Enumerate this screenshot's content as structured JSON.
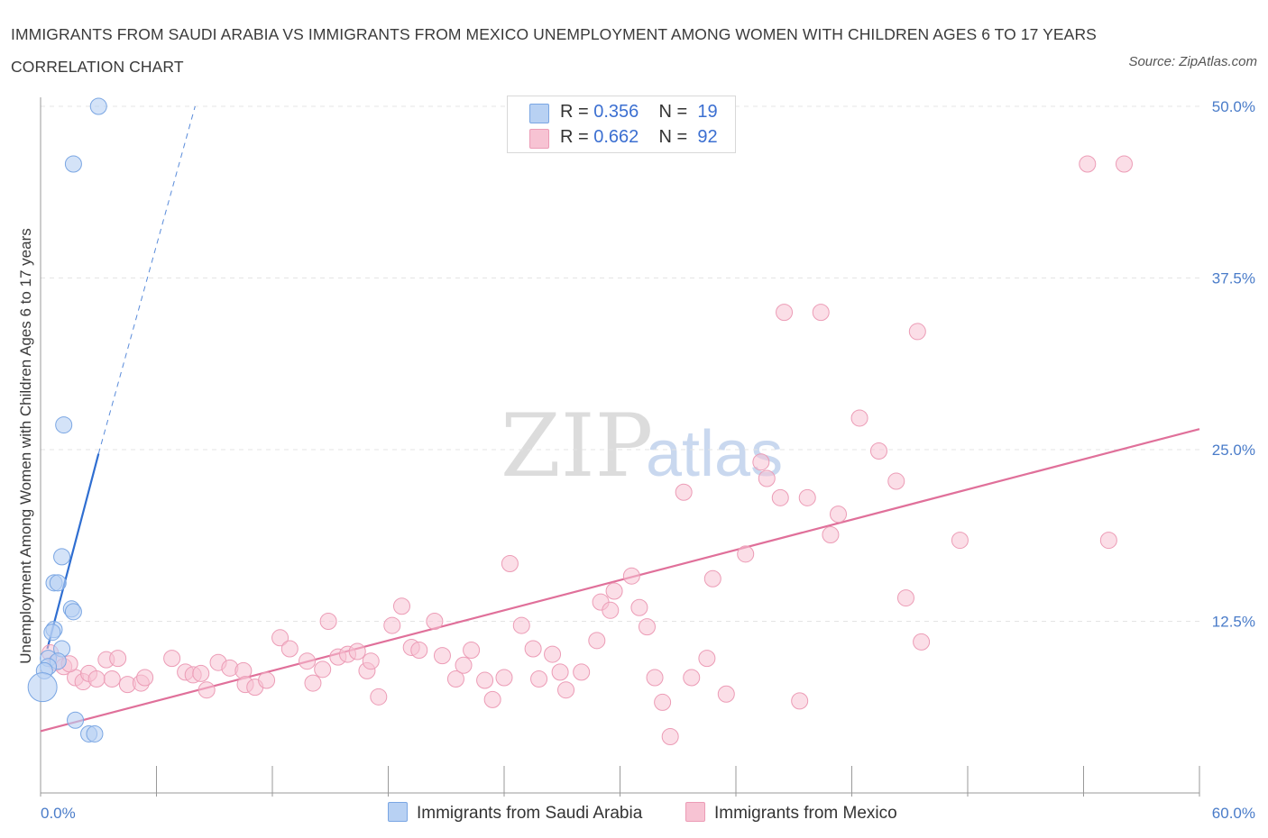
{
  "title": "IMMIGRANTS FROM SAUDI ARABIA VS IMMIGRANTS FROM MEXICO UNEMPLOYMENT AMONG WOMEN WITH CHILDREN AGES 6 TO 17 YEARS CORRELATION CHART",
  "source": "Source: ZipAtlas.com",
  "watermark": {
    "zip": "ZIP",
    "atlas": "atlas"
  },
  "legend": {
    "r_label": "R = ",
    "n_label": "N = ",
    "saudi": {
      "r": "0.356",
      "n": "19"
    },
    "mexico": {
      "r": "0.662",
      "n": "92"
    }
  },
  "colors": {
    "saudi_fill": "#b8d1f3",
    "saudi_stroke": "#7aa6e3",
    "saudi_line": "#2f6ed1",
    "mexico_fill": "#f7c3d3",
    "mexico_stroke": "#ec9cb6",
    "mexico_line": "#e0709a"
  },
  "chart_data": {
    "type": "scatter",
    "title": "IMMIGRANTS FROM SAUDI ARABIA VS IMMIGRANTS FROM MEXICO UNEMPLOYMENT AMONG WOMEN WITH CHILDREN AGES 6 TO 17 YEARS CORRELATION CHART",
    "xlabel": "",
    "ylabel": "Unemployment Among Women with Children Ages 6 to 17 years",
    "xlim": [
      0,
      60
    ],
    "ylim": [
      0,
      50
    ],
    "x_tick_labels": [
      "0.0%",
      "60.0%"
    ],
    "y_ticks": [
      12.5,
      25.0,
      37.5,
      50.0
    ],
    "y_tick_labels": [
      "12.5%",
      "25.0%",
      "37.5%",
      "50.0%"
    ],
    "grid": true,
    "legend_position": "top-center",
    "series": [
      {
        "name": "Immigrants from Saudi Arabia",
        "R": 0.356,
        "N": 19,
        "points": [
          [
            3.0,
            50.0
          ],
          [
            1.7,
            45.8
          ],
          [
            1.2,
            26.8
          ],
          [
            1.1,
            17.2
          ],
          [
            0.7,
            15.3
          ],
          [
            0.9,
            15.3
          ],
          [
            1.6,
            13.4
          ],
          [
            1.7,
            13.2
          ],
          [
            0.7,
            11.9
          ],
          [
            0.6,
            11.7
          ],
          [
            1.1,
            10.5
          ],
          [
            0.4,
            9.8
          ],
          [
            0.9,
            9.6
          ],
          [
            0.4,
            9.2
          ],
          [
            0.2,
            8.9
          ],
          [
            0.1,
            7.7
          ],
          [
            1.8,
            5.3
          ],
          [
            2.5,
            4.3
          ],
          [
            2.8,
            4.3
          ]
        ],
        "point_sizes": [
          9,
          9,
          9,
          9,
          9,
          9,
          9,
          9,
          9,
          9,
          9,
          9,
          9,
          9,
          9,
          16,
          9,
          9,
          9
        ],
        "trend": {
          "x_solid": [
            0.35,
            3.0
          ],
          "y_solid": [
            10.5,
            24.7
          ],
          "x_dashed": [
            3.0,
            8.0
          ],
          "y_dashed": [
            24.7,
            50.0
          ]
        }
      },
      {
        "name": "Immigrants from Mexico",
        "R": 0.662,
        "N": 92,
        "points": [
          [
            0.5,
            10.2
          ],
          [
            0.8,
            9.5
          ],
          [
            1.2,
            9.2
          ],
          [
            1.8,
            8.4
          ],
          [
            2.2,
            8.1
          ],
          [
            2.5,
            8.7
          ],
          [
            3.4,
            9.7
          ],
          [
            3.7,
            8.3
          ],
          [
            4.0,
            9.8
          ],
          [
            4.5,
            7.9
          ],
          [
            5.2,
            8.0
          ],
          [
            5.4,
            8.4
          ],
          [
            6.8,
            9.8
          ],
          [
            7.5,
            8.8
          ],
          [
            7.9,
            8.6
          ],
          [
            8.3,
            8.7
          ],
          [
            8.6,
            7.5
          ],
          [
            9.2,
            9.5
          ],
          [
            9.8,
            9.1
          ],
          [
            10.5,
            8.9
          ],
          [
            10.6,
            7.9
          ],
          [
            11.1,
            7.7
          ],
          [
            11.7,
            8.2
          ],
          [
            12.4,
            11.3
          ],
          [
            12.9,
            10.5
          ],
          [
            13.8,
            9.6
          ],
          [
            14.1,
            8.0
          ],
          [
            14.6,
            9.0
          ],
          [
            14.9,
            12.5
          ],
          [
            15.4,
            9.9
          ],
          [
            15.9,
            10.1
          ],
          [
            16.4,
            10.3
          ],
          [
            16.9,
            8.9
          ],
          [
            17.1,
            9.6
          ],
          [
            17.5,
            7.0
          ],
          [
            18.2,
            12.2
          ],
          [
            18.7,
            13.6
          ],
          [
            19.2,
            10.6
          ],
          [
            19.6,
            10.4
          ],
          [
            20.4,
            12.5
          ],
          [
            20.8,
            10.0
          ],
          [
            21.5,
            8.3
          ],
          [
            21.9,
            9.3
          ],
          [
            22.3,
            10.4
          ],
          [
            23.0,
            8.2
          ],
          [
            23.4,
            6.8
          ],
          [
            24.0,
            8.4
          ],
          [
            24.3,
            16.7
          ],
          [
            24.9,
            12.2
          ],
          [
            25.5,
            10.5
          ],
          [
            25.8,
            8.3
          ],
          [
            26.5,
            10.1
          ],
          [
            26.9,
            8.8
          ],
          [
            27.2,
            7.5
          ],
          [
            28.0,
            8.8
          ],
          [
            28.8,
            11.1
          ],
          [
            29.0,
            13.9
          ],
          [
            29.5,
            13.3
          ],
          [
            29.7,
            14.7
          ],
          [
            30.6,
            15.8
          ],
          [
            31.0,
            13.5
          ],
          [
            31.4,
            12.1
          ],
          [
            31.8,
            8.4
          ],
          [
            32.2,
            6.6
          ],
          [
            32.6,
            4.1
          ],
          [
            33.3,
            21.9
          ],
          [
            33.7,
            8.4
          ],
          [
            34.5,
            9.8
          ],
          [
            34.8,
            15.6
          ],
          [
            35.5,
            7.2
          ],
          [
            36.5,
            17.4
          ],
          [
            37.3,
            24.1
          ],
          [
            37.6,
            22.9
          ],
          [
            38.3,
            21.5
          ],
          [
            38.5,
            35.0
          ],
          [
            39.3,
            6.7
          ],
          [
            39.7,
            21.5
          ],
          [
            40.4,
            35.0
          ],
          [
            40.9,
            18.8
          ],
          [
            41.3,
            20.3
          ],
          [
            42.4,
            27.3
          ],
          [
            43.4,
            24.9
          ],
          [
            44.3,
            22.7
          ],
          [
            44.8,
            14.2
          ],
          [
            45.4,
            33.6
          ],
          [
            45.6,
            11.0
          ],
          [
            47.6,
            18.4
          ],
          [
            54.2,
            45.8
          ],
          [
            55.3,
            18.4
          ],
          [
            56.1,
            45.8
          ],
          [
            1.5,
            9.4
          ],
          [
            2.9,
            8.3
          ]
        ],
        "trend": {
          "x": [
            0,
            60
          ],
          "y": [
            4.5,
            26.5
          ]
        }
      }
    ]
  },
  "bottom_legend": {
    "saudi_label": "Immigrants from Saudi Arabia",
    "mexico_label": "Immigrants from Mexico"
  }
}
